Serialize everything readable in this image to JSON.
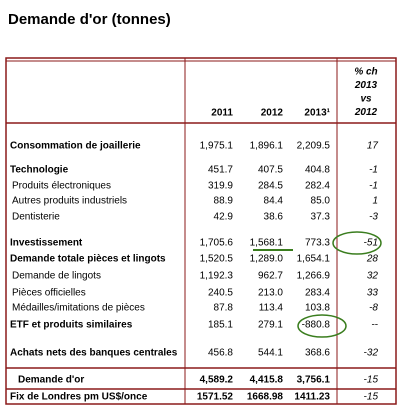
{
  "header": {
    "title": "Demande d'or (tonnes)"
  },
  "table": {
    "columns": [
      "2011",
      "2012",
      "2013¹",
      [
        "% ch",
        "2013",
        "vs",
        "2012"
      ]
    ],
    "rows": [
      [
        "Consommation de joaillerie",
        "1,975.1",
        "1,896.1",
        "2,209.5",
        "17"
      ],
      [
        "Technologie",
        "451.7",
        "407.5",
        "404.8",
        "-1"
      ],
      [
        "Produits électroniques",
        "319.9",
        "284.5",
        "282.4",
        "-1"
      ],
      [
        "Autres produits industriels",
        "88.9",
        "84.4",
        "85.0",
        "1"
      ],
      [
        "Dentisterie",
        "42.9",
        "38.6",
        "37.3",
        "-3"
      ],
      [
        "Investissement",
        "1,705.6",
        "1,568.1",
        "773.3",
        "-51"
      ],
      [
        "Demande totale pièces et lingots",
        "1,520.5",
        "1,289.0",
        "1,654.1",
        "28"
      ],
      [
        "Demande de lingots",
        "1,192.3",
        "962.7",
        "1,266.9",
        "32"
      ],
      [
        "Pièces officielles",
        "240.5",
        "213.0",
        "283.4",
        "33"
      ],
      [
        "Médailles/imitations de pièces",
        "87.8",
        "113.4",
        "103.8",
        "-8"
      ],
      [
        "ETF et produits similaires",
        "185.1",
        "279.1",
        "-880.8",
        "--"
      ],
      [
        "Achats nets des banques centrales",
        "456.8",
        "544.1",
        "368.6",
        "-32"
      ],
      [
        "Demande d'or",
        "4,589.2",
        "4,415.8",
        "3,756.1",
        "-15"
      ],
      [
        "Fix de Londres pm US$/once",
        "1571.52",
        "1668.98",
        "1411.23",
        "-15"
      ]
    ]
  }
}
